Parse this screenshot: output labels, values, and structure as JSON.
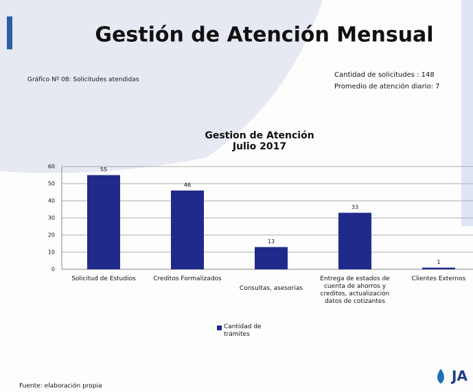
{
  "slide": {
    "title": "Gestión de Atención Mensual",
    "caption": "Gráfico Nº 08: Solicitudes atendidas",
    "stats": [
      "Cantidad de solicitudes : 148",
      "Promedio de atención diario: 7"
    ],
    "source": "Fuente: elaboración propia",
    "logo": "JA"
  },
  "chart_data": {
    "type": "bar",
    "title": "Gestion de Atención",
    "subtitle": "Julio 2017",
    "categories": [
      "Solicitud de Estudios",
      "Creditos Formalizados",
      "Consultas, asesorias",
      "Entrega de estados de cuenta de ahorros y creditos, actualización datos de cotizantes",
      "Clientes Externos"
    ],
    "series": [
      {
        "name": "Cantidad de trámites",
        "color": "#1f2a8a",
        "values": [
          55,
          46,
          13,
          33,
          1
        ]
      }
    ],
    "ylim": [
      0,
      60
    ],
    "yticks": [
      0,
      10,
      20,
      30,
      40,
      50,
      60
    ],
    "grid": true,
    "legend": "bottom"
  }
}
